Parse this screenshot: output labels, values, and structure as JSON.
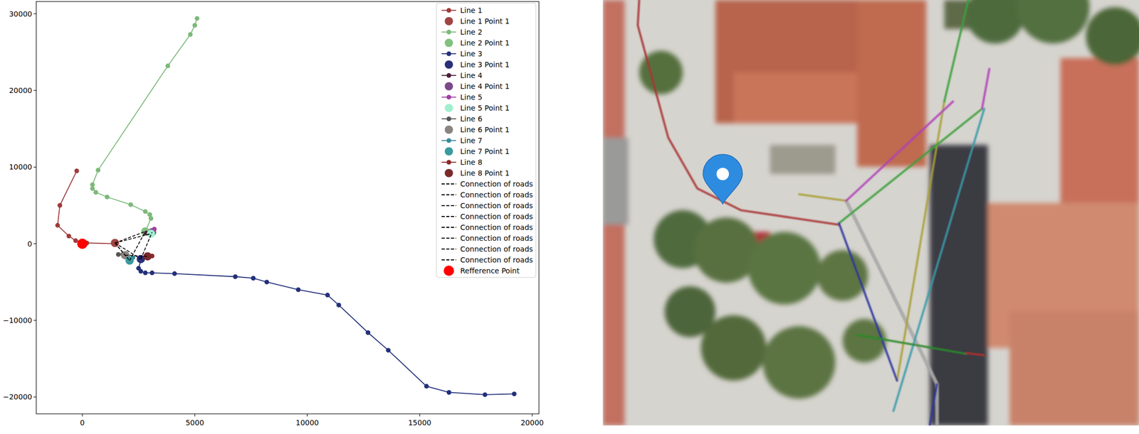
{
  "chart_data": {
    "type": "line",
    "xlim": [
      -2050,
      20300
    ],
    "ylim": [
      -22200,
      31600
    ],
    "xticks": [
      0,
      5000,
      10000,
      15000,
      20000
    ],
    "yticks": [
      {
        "value": -20000,
        "label": "−20000"
      },
      {
        "value": -10000,
        "label": "−10000"
      },
      0,
      10000,
      20000,
      30000
    ],
    "legend": "upper right",
    "series": [
      {
        "name": "Line 1",
        "type": "line",
        "color": "#9e3b3b",
        "marker": "circle",
        "line_style": "solid",
        "x": [
          -250,
          -1000,
          -1100,
          -600,
          -300,
          200,
          1400
        ],
        "values": [
          9500,
          5000,
          2400,
          1000,
          400,
          100,
          0
        ]
      },
      {
        "name": "Line 1 Point 1",
        "type": "scatter",
        "color": "#a04444",
        "marker": "circle",
        "x": [
          1450
        ],
        "values": [
          100
        ]
      },
      {
        "name": "Line 2",
        "type": "line",
        "color": "#7db97a",
        "marker": "circle",
        "line_style": "solid",
        "x": [
          5100,
          5000,
          4800,
          3800,
          700,
          450,
          450,
          600,
          1100,
          2150,
          2800,
          3000,
          3050,
          2800
        ],
        "values": [
          29400,
          28500,
          27300,
          23200,
          9600,
          7700,
          7200,
          6700,
          6100,
          5100,
          4200,
          3800,
          3300,
          1600
        ]
      },
      {
        "name": "Line 2 Point 1",
        "type": "scatter",
        "color": "#82c080",
        "marker": "circle",
        "x": [
          2800
        ],
        "values": [
          1600
        ]
      },
      {
        "name": "Line 3",
        "type": "line",
        "color": "#23307a",
        "marker": "circle",
        "line_style": "solid",
        "x": [
          2600,
          2600,
          2500,
          2600,
          2800,
          3100,
          4100,
          6800,
          7600,
          8200,
          9600,
          10900,
          11400,
          12700,
          13600,
          15300,
          16300,
          17900,
          19200
        ],
        "values": [
          -2000,
          -2200,
          -3200,
          -3600,
          -3800,
          -3800,
          -3900,
          -4300,
          -4500,
          -5000,
          -6000,
          -6700,
          -8000,
          -11600,
          -13900,
          -18600,
          -19400,
          -19700,
          -19600
        ]
      },
      {
        "name": "Line 3 Point 1",
        "type": "scatter",
        "color": "#2a2f7a",
        "marker": "circle",
        "x": [
          2600
        ],
        "values": [
          -2000
        ]
      },
      {
        "name": "Line 4",
        "type": "line",
        "color": "#4a1f3a",
        "marker": "circle",
        "line_style": "solid",
        "x": [
          2850,
          3100
        ],
        "values": [
          1400,
          1500
        ]
      },
      {
        "name": "Line 4 Point 1",
        "type": "scatter",
        "color": "#7a4a8a",
        "marker": "circle",
        "x": [
          3100
        ],
        "values": [
          1500
        ]
      },
      {
        "name": "Line 5",
        "type": "line",
        "color": "#a040a0",
        "marker": "circle",
        "line_style": "solid",
        "x": [
          3100,
          3200
        ],
        "values": [
          1400,
          1900
        ]
      },
      {
        "name": "Line 5 Point 1",
        "type": "scatter",
        "color": "#a0f0d0",
        "marker": "circle",
        "x": [
          3050
        ],
        "values": [
          1300
        ]
      },
      {
        "name": "Line 6",
        "type": "line",
        "color": "#555555",
        "marker": "circle",
        "line_style": "solid",
        "x": [
          1600,
          1800,
          2000
        ],
        "values": [
          -1400,
          -1400,
          -1500
        ]
      },
      {
        "name": "Line 6 Point 1",
        "type": "scatter",
        "color": "#8c8480",
        "marker": "circle",
        "x": [
          1900
        ],
        "values": [
          -1500
        ]
      },
      {
        "name": "Line 7",
        "type": "line",
        "color": "#3a8a9a",
        "marker": "circle",
        "line_style": "solid",
        "x": [
          2100,
          2150,
          2250
        ],
        "values": [
          -2300,
          -2000,
          -1800
        ]
      },
      {
        "name": "Line 7 Point 1",
        "type": "scatter",
        "color": "#3a9aa0",
        "marker": "circle",
        "x": [
          2100
        ],
        "values": [
          -2200
        ]
      },
      {
        "name": "Line 8",
        "type": "line",
        "color": "#8a2a2a",
        "marker": "circle",
        "line_style": "solid",
        "x": [
          2900,
          3100
        ],
        "values": [
          -1650,
          -1600
        ]
      },
      {
        "name": "Line 8 Point 1",
        "type": "scatter",
        "color": "#7a2a2a",
        "marker": "circle",
        "x": [
          2900
        ],
        "values": [
          -1650
        ]
      },
      {
        "name": "Connection of roads",
        "type": "line",
        "color": "#000000",
        "marker": "none",
        "line_style": "dashed",
        "x": [
          1450,
          2800
        ],
        "values": [
          100,
          1600
        ]
      },
      {
        "name": "Connection of roads",
        "type": "line",
        "color": "#000000",
        "marker": "none",
        "line_style": "dashed",
        "x": [
          1450,
          3050
        ],
        "values": [
          100,
          1300
        ]
      },
      {
        "name": "Connection of roads",
        "type": "line",
        "color": "#000000",
        "marker": "none",
        "line_style": "dashed",
        "x": [
          1450,
          2100
        ],
        "values": [
          100,
          -2200
        ]
      },
      {
        "name": "Connection of roads",
        "type": "line",
        "color": "#000000",
        "marker": "none",
        "line_style": "dashed",
        "x": [
          1450,
          2600
        ],
        "values": [
          100,
          -2000
        ]
      },
      {
        "name": "Connection of roads",
        "type": "line",
        "color": "#000000",
        "marker": "none",
        "line_style": "dashed",
        "x": [
          1900,
          2900
        ],
        "values": [
          -1500,
          -1650
        ]
      },
      {
        "name": "Connection of roads",
        "type": "line",
        "color": "#000000",
        "marker": "none",
        "line_style": "dashed",
        "x": [
          2100,
          2800
        ],
        "values": [
          -2200,
          1600
        ]
      },
      {
        "name": "Connection of roads",
        "type": "line",
        "color": "#000000",
        "marker": "none",
        "line_style": "dashed",
        "x": [
          2600,
          3100
        ],
        "values": [
          -2000,
          1500
        ]
      },
      {
        "name": "Connection of roads",
        "type": "line",
        "color": "#000000",
        "marker": "none",
        "line_style": "dashed",
        "x": [
          1450,
          1900
        ],
        "values": [
          100,
          -1500
        ]
      },
      {
        "name": "Refference Point",
        "type": "scatter",
        "color": "#ff0000",
        "marker": "circle",
        "x": [
          0
        ],
        "values": [
          0
        ]
      }
    ]
  }
}
